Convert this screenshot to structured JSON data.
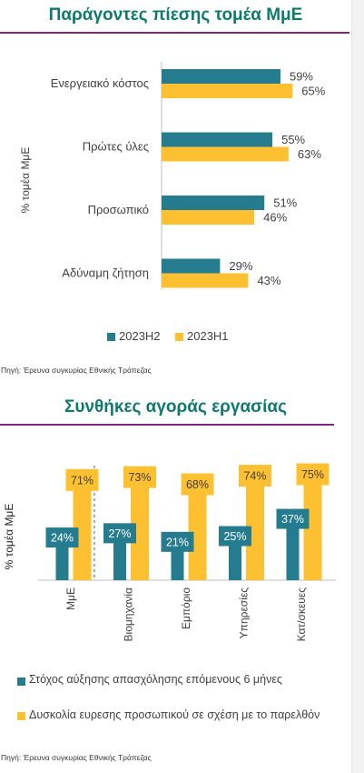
{
  "colors": {
    "title": "#0e7a6e",
    "rule": "#7a2580",
    "teal": "#267c8f",
    "gold": "#fdc030",
    "text": "#404040"
  },
  "chart_data": [
    {
      "type": "bar",
      "orientation": "horizontal",
      "title": "Παράγοντες πίεσης τομέα ΜμΕ",
      "ylabel": "% τομέα ΜμΕ",
      "categories": [
        "Ενεργειακό κόστος",
        "Πρώτες ύλες",
        "Προσωπικό",
        "Αδύναμη ζήτηση"
      ],
      "series": [
        {
          "name": "2023Η2",
          "values": [
            59,
            55,
            51,
            29
          ],
          "labels": [
            "59%",
            "55%",
            "51%",
            "29%"
          ]
        },
        {
          "name": "2023Η1",
          "values": [
            65,
            63,
            46,
            43
          ],
          "labels": [
            "65%",
            "63%",
            "46%",
            "43%"
          ]
        }
      ],
      "xlim": [
        0,
        100
      ],
      "grid": false,
      "legend": "bottom",
      "source": "Πηγή: Έρευνα συγκυρίας Εθνικής Τράπεζας"
    },
    {
      "type": "bar",
      "orientation": "vertical",
      "title": "Συνθήκες αγοράς εργασίας",
      "ylabel": "% τομέα ΜμΕ",
      "categories": [
        "ΜμΕ",
        "Βιομηχανία",
        "Εμπόριο",
        "Υπηρεσίες",
        "Κατ/σκευες"
      ],
      "series": [
        {
          "name": "Στόχος αύξησης απασχόλησης επόμενους 6 μήνες",
          "values": [
            24,
            27,
            21,
            25,
            37
          ],
          "labels": [
            "24%",
            "27%",
            "21%",
            "25%",
            "37%"
          ]
        },
        {
          "name": "Δυσκολία ευρεσης προσωπικού σε σχέση με το παρελθόν",
          "values": [
            71,
            73,
            68,
            74,
            75
          ],
          "labels": [
            "71%",
            "73%",
            "68%",
            "74%",
            "75%"
          ]
        }
      ],
      "ylim": [
        0,
        100
      ],
      "grid": false,
      "legend": "bottom",
      "source": "Πηγή: Έρευνα συγκυρίας Εθνικής Τράπεζας"
    }
  ]
}
